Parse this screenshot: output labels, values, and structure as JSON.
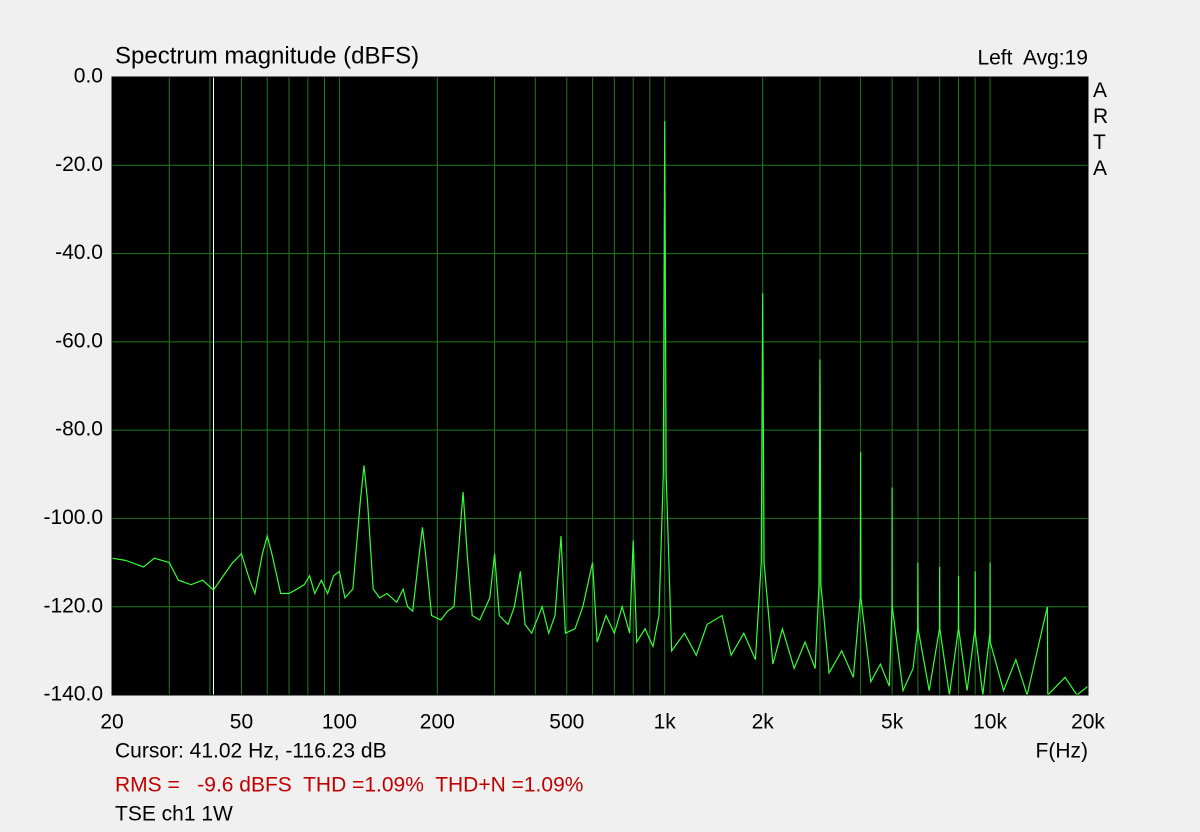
{
  "chart_data": {
    "type": "line",
    "title": "Spectrum magnitude (dBFS)",
    "channel_label": "Left  Avg:19",
    "side_label": "ARTA",
    "xlabel": "F(Hz)",
    "xscale": "log",
    "grid": true,
    "grid_color": "#1f7a1f",
    "background": "#000000",
    "xlim": [
      20,
      20000
    ],
    "ylim": [
      -140,
      0
    ],
    "xticks": [
      20,
      50,
      100,
      200,
      500,
      {
        "value": 1000,
        "label": "1k"
      },
      {
        "value": 2000,
        "label": "2k"
      },
      {
        "value": 5000,
        "label": "5k"
      },
      {
        "value": 10000,
        "label": "10k"
      },
      {
        "value": 20000,
        "label": "20k"
      }
    ],
    "xgrid": [
      30,
      40,
      60,
      70,
      80,
      90,
      300,
      400,
      600,
      700,
      800,
      900,
      3000,
      4000,
      6000,
      7000,
      8000,
      9000
    ],
    "yticks": [
      {
        "value": 0,
        "label": "0.0"
      },
      {
        "value": -20,
        "label": "-20.0"
      },
      {
        "value": -40,
        "label": "-40.0"
      },
      {
        "value": -60,
        "label": "-60.0"
      },
      {
        "value": -80,
        "label": "-80.0"
      },
      {
        "value": -100,
        "label": "-100.0"
      },
      {
        "value": -120,
        "label": "-120.0"
      },
      {
        "value": -140,
        "label": "-140.0"
      }
    ],
    "cursor": {
      "label": "Cursor: 41.02 Hz, -116.23 dB",
      "x": 41.02,
      "color": "#ffffff"
    },
    "stats": "RMS =   -9.6 dBFS  THD =1.09%  THD+N =1.09%",
    "stats_color": "#c00000",
    "note": "TSE ch1 1W",
    "x": [
      20,
      22,
      25,
      27,
      30,
      32,
      35,
      38,
      41.02,
      43,
      47,
      50,
      53,
      55,
      58,
      60,
      62,
      66,
      70,
      74,
      78,
      81,
      84,
      88,
      92,
      96,
      100,
      104,
      110,
      116,
      119,
      122,
      127,
      133,
      140,
      150,
      157,
      162,
      168,
      176,
      180,
      184,
      192,
      205,
      215,
      225,
      232,
      240,
      247,
      256,
      270,
      290,
      300,
      310,
      330,
      345,
      360,
      372,
      390,
      420,
      440,
      460,
      480,
      495,
      530,
      560,
      600,
      620,
      660,
      700,
      740,
      780,
      800,
      820,
      870,
      920,
      960,
      990,
      1000,
      1010,
      1050,
      1150,
      1250,
      1350,
      1500,
      1600,
      1750,
      1900,
      1980,
      2000,
      2020,
      2150,
      2300,
      2500,
      2700,
      2900,
      2980,
      3000,
      3020,
      3200,
      3500,
      3800,
      3990,
      4000,
      4010,
      4300,
      4600,
      4900,
      4995,
      5000,
      5005,
      5400,
      5800,
      5990,
      6000,
      6010,
      6500,
      6990,
      7000,
      7010,
      7500,
      7990,
      8000,
      8010,
      8500,
      8990,
      9000,
      9010,
      9500,
      9990,
      10000,
      10010,
      11000,
      12000,
      13000,
      15000,
      15050,
      17000,
      18500,
      20000
    ],
    "series": [
      {
        "name": "Left",
        "color": "#33ff33",
        "values": [
          -109,
          -109.5,
          -111,
          -109,
          -110,
          -114,
          -115,
          -114,
          -116.23,
          -114,
          -110,
          -108,
          -114,
          -117,
          -108,
          -104,
          -108,
          -117,
          -117,
          -116,
          -115,
          -113,
          -117,
          -114,
          -117,
          -113,
          -112,
          -118,
          -116,
          -96,
          -88,
          -96,
          -116,
          -118,
          -117,
          -119,
          -116,
          -120,
          -121,
          -108,
          -102,
          -108,
          -122,
          -123,
          -121,
          -120,
          -108,
          -94,
          -108,
          -122,
          -123,
          -118,
          -108,
          -122,
          -124,
          -120,
          -112,
          -124,
          -126,
          -120,
          -126,
          -122,
          -104,
          -126,
          -125,
          -120,
          -110,
          -128,
          -122,
          -126,
          -120,
          -126,
          -105,
          -128,
          -125,
          -129,
          -122,
          -90,
          -10,
          -90,
          -130,
          -126,
          -131,
          -124,
          -122,
          -131,
          -126,
          -132,
          -110,
          -49,
          -110,
          -133,
          -125,
          -134,
          -128,
          -134,
          -115,
          -64,
          -115,
          -135,
          -130,
          -136,
          -118,
          -85,
          -118,
          -137,
          -133,
          -138,
          -120,
          -93,
          -120,
          -139,
          -134,
          -125,
          -110,
          -125,
          -139,
          -125,
          -111,
          -125,
          -140,
          -125,
          -113,
          -125,
          -139,
          -125,
          -112,
          -126,
          -140,
          -126,
          -110,
          -128,
          -139,
          -132,
          -140,
          -120,
          -140,
          -136,
          -140,
          -138
        ]
      }
    ]
  }
}
